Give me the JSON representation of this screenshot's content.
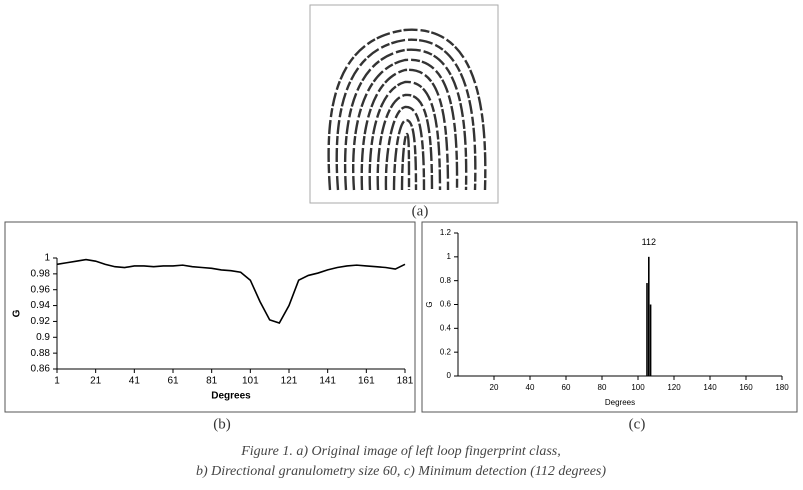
{
  "chart_data": [
    {
      "type": "line",
      "xlabel": "Degrees",
      "ylabel": "G",
      "color": "#000000",
      "x": [
        1,
        6,
        11,
        16,
        21,
        26,
        31,
        36,
        41,
        46,
        51,
        56,
        61,
        66,
        71,
        76,
        81,
        86,
        91,
        96,
        101,
        106,
        111,
        116,
        121,
        126,
        131,
        136,
        141,
        146,
        151,
        156,
        161,
        166,
        171,
        176,
        181
      ],
      "values": [
        0.992,
        0.994,
        0.996,
        0.998,
        0.996,
        0.992,
        0.989,
        0.988,
        0.99,
        0.99,
        0.989,
        0.99,
        0.99,
        0.991,
        0.989,
        0.988,
        0.987,
        0.985,
        0.984,
        0.982,
        0.972,
        0.945,
        0.922,
        0.918,
        0.94,
        0.972,
        0.978,
        0.981,
        0.985,
        0.988,
        0.99,
        0.991,
        0.99,
        0.989,
        0.988,
        0.986,
        0.992
      ],
      "xlim": [
        1,
        181
      ],
      "xticks": [
        1,
        21,
        41,
        61,
        81,
        101,
        121,
        141,
        161,
        181
      ],
      "ylim": [
        0.86,
        1
      ],
      "yticks": [
        0.86,
        0.88,
        0.9,
        0.92,
        0.94,
        0.96,
        0.98,
        1
      ]
    },
    {
      "type": "spike",
      "xlabel": "Degrees",
      "ylabel": "G",
      "color": "#000000",
      "annotation": "112",
      "x": [
        105,
        106,
        107
      ],
      "values": [
        0.78,
        1,
        0.6
      ],
      "xlim": [
        0,
        180
      ],
      "xticks": [
        20,
        40,
        60,
        80,
        100,
        120,
        140,
        160,
        180
      ],
      "ylim": [
        0,
        1.2
      ],
      "yticks": [
        0,
        0.2,
        0.4,
        0.6,
        0.8,
        1,
        1.2
      ]
    }
  ],
  "figure": {
    "labels": [
      "(a)",
      "(b)",
      "(c)"
    ],
    "caption": [
      "Figure 1. a) Original image of left loop fingerprint class,",
      "b) Directional granulometry size 60, c) Minimum detection (112 degrees)"
    ]
  }
}
